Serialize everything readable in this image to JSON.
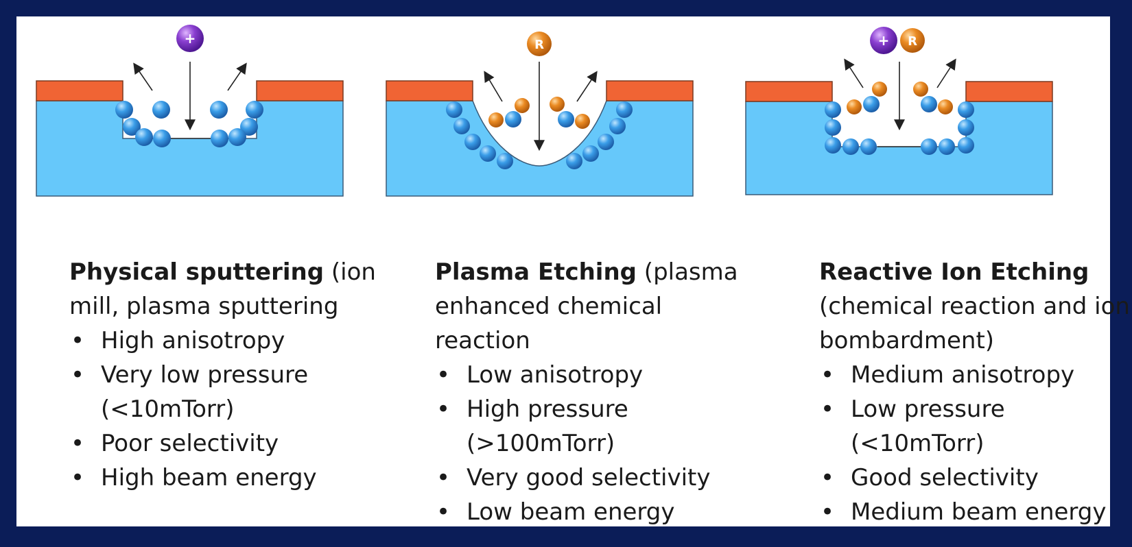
{
  "panels": [
    {
      "title": "Physical sputtering",
      "subtitle": " (ion mill, plasma sputtering",
      "bullets": [
        "High anisotropy",
        "Very low pressure (<10mTorr)",
        "Poor selectivity",
        "High beam energy"
      ],
      "species": [
        "+"
      ]
    },
    {
      "title": "Plasma Etching",
      "subtitle": " (plasma enhanced chemical reaction",
      "bullets": [
        "Low anisotropy",
        "High pressure (>100mTorr)",
        "Very good selectivity",
        "Low beam energy"
      ],
      "species": [
        "R"
      ]
    },
    {
      "title": "Reactive Ion Etching",
      "subtitle": " (chemical reaction and ion bombardment)",
      "bullets": [
        "Medium anisotropy",
        "Low pressure (<10mTorr)",
        "Good selectivity",
        "Medium beam energy"
      ],
      "species": [
        "+",
        "R"
      ]
    }
  ],
  "colors": {
    "background": "#0b1d58",
    "substrate": "#66c8fa",
    "mask": "#f06434",
    "ion": "#7b2fbe",
    "radical": "#e07b1a",
    "atom": "#2e8fe0"
  }
}
